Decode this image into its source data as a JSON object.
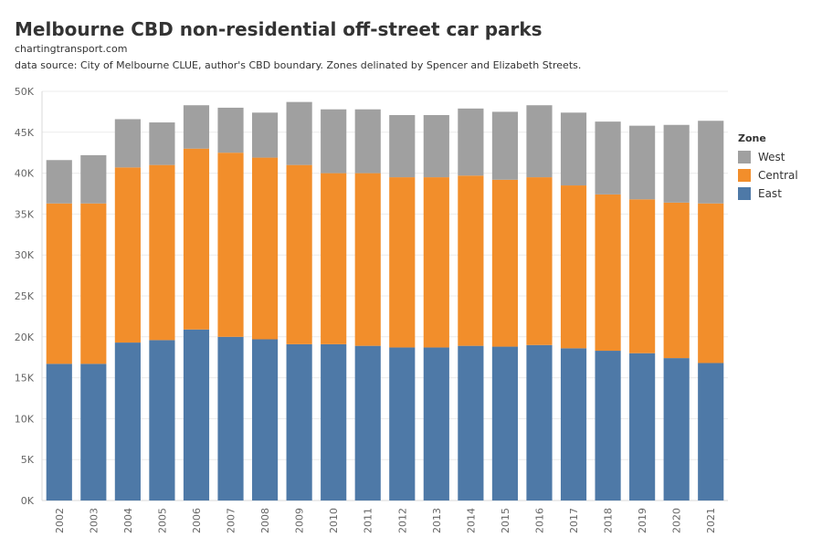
{
  "chart_data": {
    "type": "bar",
    "stacked": true,
    "title": "Melbourne CBD non-residential off-street car parks",
    "subtitle": "chartingtransport.com",
    "note": "data source: City of Melbourne CLUE, author's CBD boundary. Zones delinated by Spencer and Elizabeth Streets.",
    "categories": [
      "2002",
      "2003",
      "2004",
      "2005",
      "2006",
      "2007",
      "2008",
      "2009",
      "2010",
      "2011",
      "2012",
      "2013",
      "2014",
      "2015",
      "2016",
      "2017",
      "2018",
      "2019",
      "2020",
      "2021"
    ],
    "series": [
      {
        "name": "East",
        "color": "#4e79a7",
        "values": [
          16700,
          16700,
          19300,
          19600,
          20900,
          20000,
          19700,
          19100,
          19100,
          18900,
          18700,
          18700,
          18900,
          18800,
          19000,
          18600,
          18300,
          18000,
          17400,
          16800
        ]
      },
      {
        "name": "Central",
        "color": "#f28e2b",
        "values": [
          19600,
          19600,
          21400,
          21400,
          22100,
          22500,
          22200,
          21900,
          20900,
          21100,
          20800,
          20800,
          20800,
          20400,
          20500,
          19900,
          19100,
          18800,
          19000,
          19500
        ]
      },
      {
        "name": "West",
        "color": "#a0a0a0",
        "values": [
          5300,
          5900,
          5900,
          5200,
          5300,
          5500,
          5500,
          7700,
          7800,
          7800,
          7600,
          7600,
          8200,
          8300,
          8800,
          8900,
          8900,
          9000,
          9500,
          10100
        ]
      }
    ],
    "y_ticks": [
      "0K",
      "5K",
      "10K",
      "15K",
      "20K",
      "25K",
      "30K",
      "35K",
      "40K",
      "45K",
      "50K"
    ],
    "ylim": [
      0,
      50000
    ],
    "xlabel": "",
    "ylabel": "",
    "legend": {
      "title": "Zone",
      "position": "right",
      "items": [
        {
          "name": "West",
          "color": "#a0a0a0"
        },
        {
          "name": "Central",
          "color": "#f28e2b"
        },
        {
          "name": "East",
          "color": "#4e79a7"
        }
      ]
    },
    "grid": true
  }
}
